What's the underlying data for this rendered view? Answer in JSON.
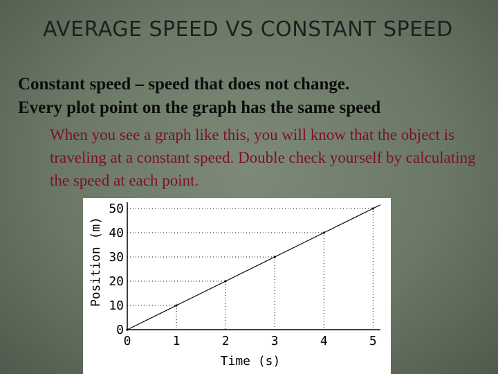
{
  "slide": {
    "title": "AVERAGE SPEED VS CONSTANT SPEED",
    "line1": "Constant speed – speed that does not change.",
    "line2": "Every plot point on the graph has the same speed",
    "note": "When you see a graph like this, you will know that the object is traveling at a constant speed. Double check yourself by calculating the speed at each point."
  },
  "colors": {
    "background": "#6c7866",
    "note_text": "#7a1128",
    "body_text": "#0d0d0d"
  },
  "chart_data": {
    "type": "line",
    "title": "",
    "xlabel": "Time (s)",
    "ylabel": "Position (m)",
    "x": [
      0,
      1,
      2,
      3,
      4,
      5
    ],
    "series": [
      {
        "values": [
          0,
          10,
          20,
          30,
          40,
          50
        ]
      }
    ],
    "xticks": [
      "0",
      "1",
      "2",
      "3",
      "4",
      "5"
    ],
    "yticks": [
      "0",
      "10",
      "20",
      "30",
      "40",
      "50"
    ],
    "xlim": [
      0,
      5.15
    ],
    "ylim": [
      0,
      52
    ],
    "grid": "dotted drop lines from each point",
    "legend": "none"
  }
}
